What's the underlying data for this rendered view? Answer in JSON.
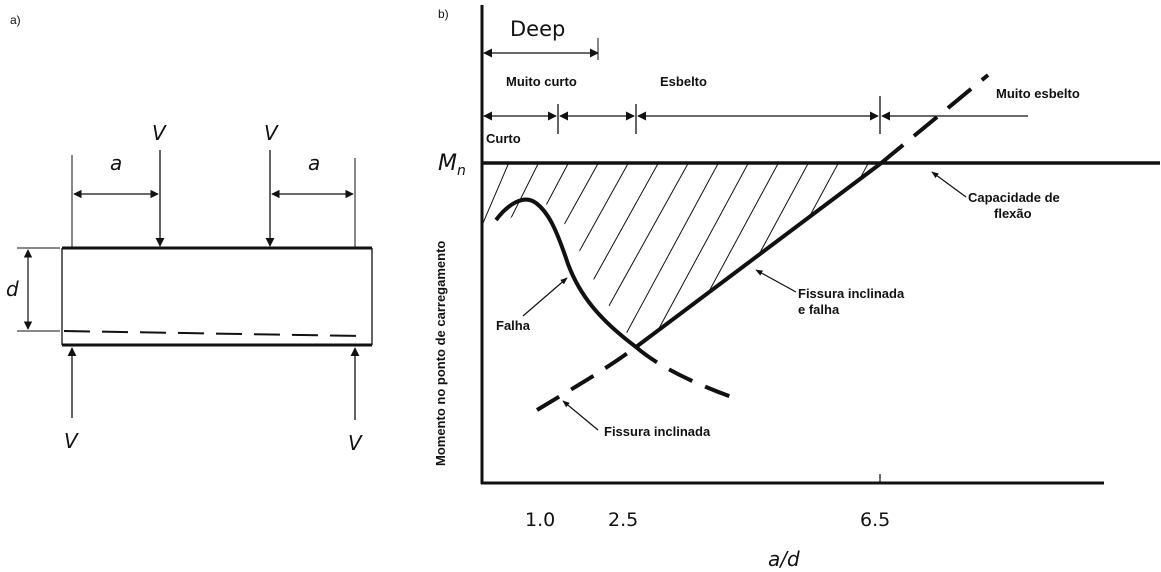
{
  "panel_a": {
    "label": "a)",
    "load_label_top_left": "V",
    "load_label_top_right": "V",
    "load_label_bottom_left": "V",
    "load_label_bottom_right": "V",
    "span_label_left": "a",
    "span_label_right": "a",
    "depth_label": "d"
  },
  "panel_b": {
    "label": "b)",
    "deep_label": "Deep",
    "region_muito_curto": "Muito curto",
    "region_esbelto": "Esbelto",
    "region_muito_esbelto": "Muito esbelto",
    "region_curto": "Curto",
    "mn_main": "M",
    "mn_sub": "n",
    "y_axis_label": "Momento no ponto de carregamento",
    "x_axis_label": "a/d",
    "x_ticks": [
      "1.0",
      "2.5",
      "6.5"
    ],
    "annotations": {
      "capacidade_line1": "Capacidade de",
      "capacidade_line2": "flexão",
      "fissura_falha_line1": "Fissura inclinada",
      "fissura_falha_line2": "e falha",
      "falha": "Falha",
      "fissura_inclinada": "Fissura inclinada"
    }
  }
}
